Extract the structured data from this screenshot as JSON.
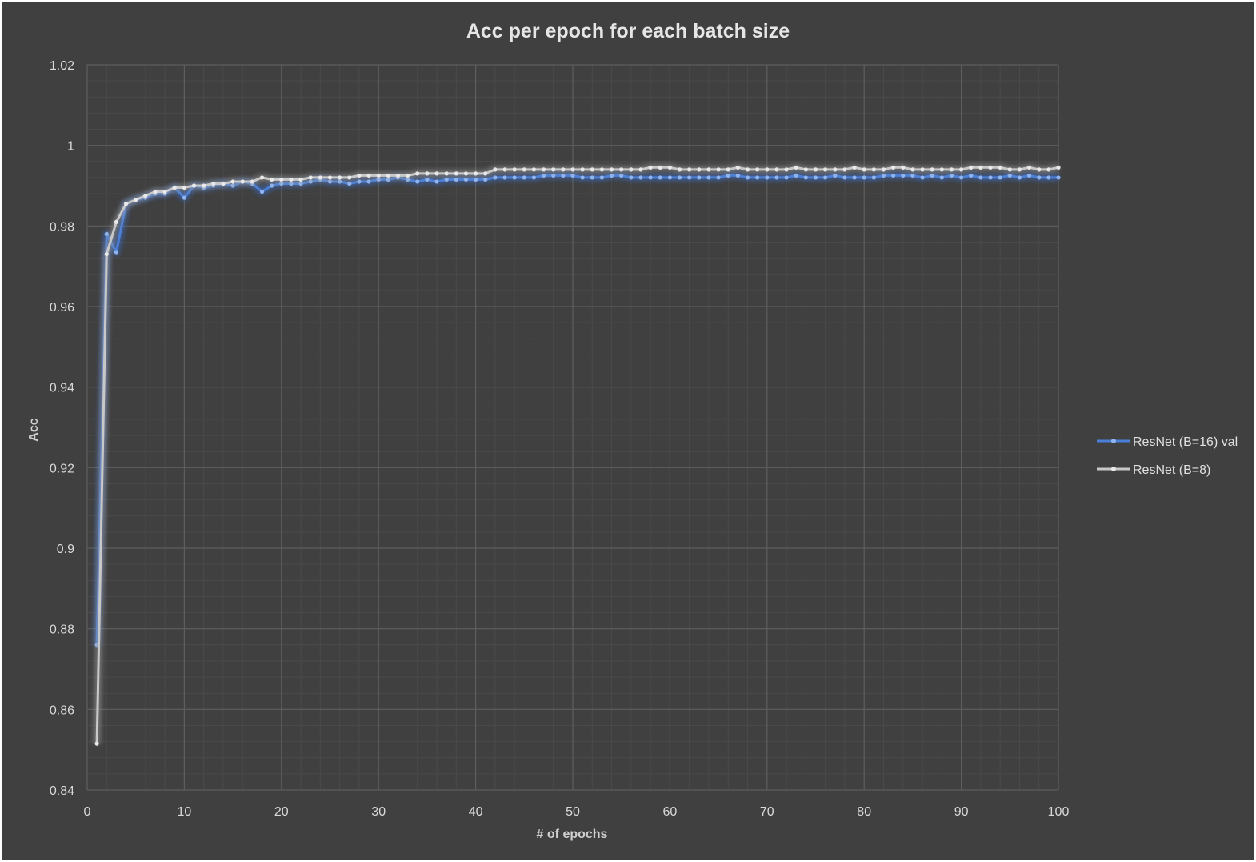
{
  "colors": {
    "background": "#404040",
    "grid_major": "#5e5e5e",
    "grid_minor": "#4a4a4a",
    "series_blue": "#4a7fd8",
    "series_blue_glow": "#3a6fd0",
    "series_gray": "#c8c8c8",
    "series_gray_glow": "#9a9a9a"
  },
  "chart_data": {
    "type": "line",
    "title": "Acc per epoch for each batch size",
    "xlabel": "# of epochs",
    "ylabel": "Acc",
    "xlim": [
      0,
      100
    ],
    "ylim": [
      0.84,
      1.02
    ],
    "x_ticks": [
      "0",
      "10",
      "20",
      "30",
      "40",
      "50",
      "60",
      "70",
      "80",
      "90",
      "100"
    ],
    "y_ticks": [
      "0.84",
      "0.86",
      "0.88",
      "0.9",
      "0.92",
      "0.94",
      "0.96",
      "0.98",
      "1",
      "1.02"
    ],
    "grid": true,
    "legend_position": "right",
    "x": [
      1,
      2,
      3,
      4,
      5,
      6,
      7,
      8,
      9,
      10,
      11,
      12,
      13,
      14,
      15,
      16,
      17,
      18,
      19,
      20,
      21,
      22,
      23,
      24,
      25,
      26,
      27,
      28,
      29,
      30,
      31,
      32,
      33,
      34,
      35,
      36,
      37,
      38,
      39,
      40,
      41,
      42,
      43,
      44,
      45,
      46,
      47,
      48,
      49,
      50,
      51,
      52,
      53,
      54,
      55,
      56,
      57,
      58,
      59,
      60,
      61,
      62,
      63,
      64,
      65,
      66,
      67,
      68,
      69,
      70,
      71,
      72,
      73,
      74,
      75,
      76,
      77,
      78,
      79,
      80,
      81,
      82,
      83,
      84,
      85,
      86,
      87,
      88,
      89,
      90,
      91,
      92,
      93,
      94,
      95,
      96,
      97,
      98,
      99,
      100
    ],
    "series": [
      {
        "name": "ResNet (B=16) val",
        "color": "#4a7fd8",
        "values": [
          0.876,
          0.978,
          0.9735,
          0.9855,
          0.9865,
          0.987,
          0.988,
          0.988,
          0.9895,
          0.987,
          0.99,
          0.9895,
          0.99,
          0.9905,
          0.99,
          0.991,
          0.9905,
          0.9885,
          0.99,
          0.9905,
          0.9905,
          0.9905,
          0.991,
          0.9915,
          0.991,
          0.991,
          0.9905,
          0.991,
          0.991,
          0.9915,
          0.9915,
          0.992,
          0.9915,
          0.991,
          0.9915,
          0.991,
          0.9915,
          0.9915,
          0.9915,
          0.9915,
          0.9915,
          0.992,
          0.992,
          0.992,
          0.992,
          0.992,
          0.9925,
          0.9925,
          0.9925,
          0.9925,
          0.992,
          0.992,
          0.992,
          0.9925,
          0.9925,
          0.992,
          0.992,
          0.992,
          0.992,
          0.992,
          0.992,
          0.992,
          0.992,
          0.992,
          0.992,
          0.9925,
          0.9925,
          0.992,
          0.992,
          0.992,
          0.992,
          0.992,
          0.9925,
          0.992,
          0.992,
          0.992,
          0.9925,
          0.992,
          0.992,
          0.992,
          0.992,
          0.9925,
          0.9925,
          0.9925,
          0.9925,
          0.992,
          0.9925,
          0.992,
          0.9925,
          0.992,
          0.9925,
          0.992,
          0.992,
          0.992,
          0.9925,
          0.992,
          0.9925,
          0.992,
          0.992,
          0.992
        ]
      },
      {
        "name": "ResNet (B=8)",
        "color": "#c8c8c8",
        "values": [
          0.8515,
          0.973,
          0.981,
          0.9855,
          0.9865,
          0.9875,
          0.9885,
          0.9885,
          0.9895,
          0.9895,
          0.99,
          0.99,
          0.9905,
          0.9905,
          0.991,
          0.991,
          0.991,
          0.992,
          0.9915,
          0.9915,
          0.9915,
          0.9915,
          0.992,
          0.992,
          0.992,
          0.992,
          0.992,
          0.9925,
          0.9925,
          0.9925,
          0.9925,
          0.9925,
          0.9925,
          0.993,
          0.993,
          0.993,
          0.993,
          0.993,
          0.993,
          0.993,
          0.993,
          0.994,
          0.994,
          0.994,
          0.994,
          0.994,
          0.994,
          0.994,
          0.994,
          0.994,
          0.994,
          0.994,
          0.994,
          0.994,
          0.994,
          0.994,
          0.994,
          0.9945,
          0.9945,
          0.9945,
          0.994,
          0.994,
          0.994,
          0.994,
          0.994,
          0.994,
          0.9945,
          0.994,
          0.994,
          0.994,
          0.994,
          0.994,
          0.9945,
          0.994,
          0.994,
          0.994,
          0.994,
          0.994,
          0.9945,
          0.994,
          0.994,
          0.994,
          0.9945,
          0.9945,
          0.994,
          0.994,
          0.994,
          0.994,
          0.994,
          0.994,
          0.9945,
          0.9945,
          0.9945,
          0.9945,
          0.994,
          0.994,
          0.9945,
          0.994,
          0.994,
          0.9945
        ]
      }
    ]
  }
}
